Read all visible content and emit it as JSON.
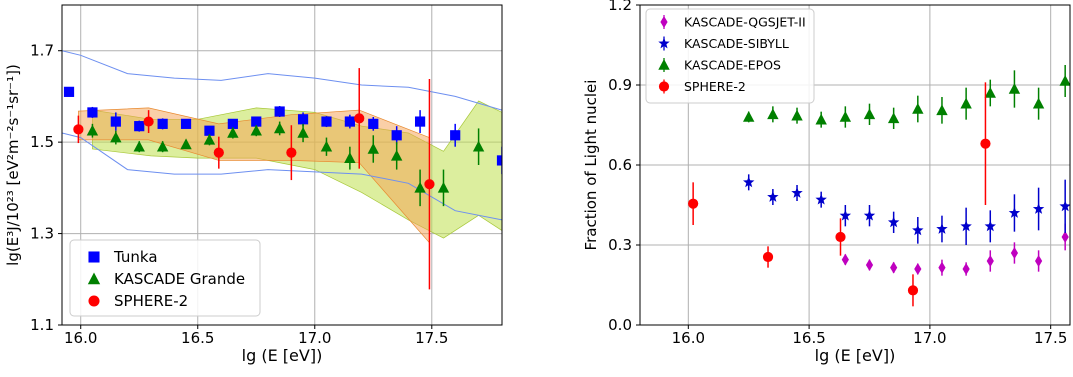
{
  "chart_data": [
    {
      "type": "scatter",
      "xlabel": "lg (E [eV])",
      "ylabel": "lg(E³J/10²³ [eV²m⁻²s⁻¹sr⁻¹])",
      "xlim": [
        15.92,
        17.8
      ],
      "ylim": [
        1.1,
        1.8
      ],
      "xticks": [
        16.0,
        16.5,
        17.0,
        17.5
      ],
      "xtick_labels": [
        "16.0",
        "16.5",
        "17.0",
        "17.5"
      ],
      "yticks": [
        1.1,
        1.3,
        1.5,
        1.7
      ],
      "ytick_labels": [
        "1.1",
        "1.3",
        "1.5",
        "1.7"
      ],
      "grid": true,
      "legend_position": "lower-left",
      "series": [
        {
          "name": "Tunka",
          "marker": "square",
          "color": "#0000ff",
          "points": [
            {
              "x": 15.95,
              "y": 1.61,
              "err": 0.0
            },
            {
              "x": 16.05,
              "y": 1.565,
              "err": 0.012
            },
            {
              "x": 16.15,
              "y": 1.545,
              "err": 0.02
            },
            {
              "x": 16.25,
              "y": 1.535,
              "err": 0.012
            },
            {
              "x": 16.35,
              "y": 1.54,
              "err": 0.012
            },
            {
              "x": 16.45,
              "y": 1.54,
              "err": 0.01
            },
            {
              "x": 16.55,
              "y": 1.525,
              "err": 0.01
            },
            {
              "x": 16.65,
              "y": 1.54,
              "err": 0.01
            },
            {
              "x": 16.75,
              "y": 1.545,
              "err": 0.01
            },
            {
              "x": 16.85,
              "y": 1.567,
              "err": 0.012
            },
            {
              "x": 16.95,
              "y": 1.55,
              "err": 0.015
            },
            {
              "x": 17.05,
              "y": 1.545,
              "err": 0.012
            },
            {
              "x": 17.15,
              "y": 1.545,
              "err": 0.015
            },
            {
              "x": 17.25,
              "y": 1.54,
              "err": 0.015
            },
            {
              "x": 17.35,
              "y": 1.515,
              "err": 0.02
            },
            {
              "x": 17.45,
              "y": 1.545,
              "err": 0.025
            },
            {
              "x": 17.6,
              "y": 1.515,
              "err": 0.025
            },
            {
              "x": 17.8,
              "y": 1.46,
              "err": 0.03
            }
          ]
        },
        {
          "name": "KASCADE Grande",
          "marker": "triangle",
          "color": "#008000",
          "points": [
            {
              "x": 16.05,
              "y": 1.525,
              "err": 0.015
            },
            {
              "x": 16.15,
              "y": 1.51,
              "err": 0.015
            },
            {
              "x": 16.25,
              "y": 1.49,
              "err": 0.012
            },
            {
              "x": 16.35,
              "y": 1.49,
              "err": 0.012
            },
            {
              "x": 16.45,
              "y": 1.495,
              "err": 0.01
            },
            {
              "x": 16.55,
              "y": 1.505,
              "err": 0.012
            },
            {
              "x": 16.65,
              "y": 1.52,
              "err": 0.012
            },
            {
              "x": 16.75,
              "y": 1.525,
              "err": 0.012
            },
            {
              "x": 16.85,
              "y": 1.53,
              "err": 0.015
            },
            {
              "x": 16.95,
              "y": 1.52,
              "err": 0.02
            },
            {
              "x": 17.05,
              "y": 1.49,
              "err": 0.02
            },
            {
              "x": 17.15,
              "y": 1.465,
              "err": 0.025
            },
            {
              "x": 17.25,
              "y": 1.485,
              "err": 0.03
            },
            {
              "x": 17.35,
              "y": 1.47,
              "err": 0.03
            },
            {
              "x": 17.45,
              "y": 1.4,
              "err": 0.04
            },
            {
              "x": 17.55,
              "y": 1.4,
              "err": 0.04
            },
            {
              "x": 17.7,
              "y": 1.49,
              "err": 0.04
            }
          ]
        },
        {
          "name": "SPHERE-2",
          "marker": "circle",
          "color": "#ff0000",
          "points": [
            {
              "x": 15.99,
              "y": 1.528,
              "err": 0.03
            },
            {
              "x": 16.29,
              "y": 1.545,
              "err": 0.025
            },
            {
              "x": 16.59,
              "y": 1.477,
              "err": 0.035
            },
            {
              "x": 16.9,
              "y": 1.477,
              "err": 0.06
            },
            {
              "x": 17.19,
              "y": 1.552,
              "err": 0.11
            },
            {
              "x": 17.49,
              "y": 1.408,
              "err": 0.23
            }
          ]
        }
      ]
    },
    {
      "type": "scatter",
      "xlabel": "lg (E [eV])",
      "ylabel": "Fraction of Light nuclei",
      "xlim": [
        15.8,
        17.58
      ],
      "ylim": [
        0.0,
        1.2
      ],
      "xticks": [
        16.0,
        16.5,
        17.0,
        17.5
      ],
      "xtick_labels": [
        "16.0",
        "16.5",
        "17.0",
        "17.5"
      ],
      "yticks": [
        0.0,
        0.3,
        0.6,
        0.9,
        1.2
      ],
      "ytick_labels": [
        "0.0",
        "0.3",
        "0.6",
        "0.9",
        "1.2"
      ],
      "grid": true,
      "legend_position": "top-left",
      "series": [
        {
          "name": "KASCADE-QGSJET-II",
          "marker": "diamond",
          "color": "#bf00bf",
          "points": [
            {
              "x": 16.65,
              "y": 0.245,
              "err": 0.02
            },
            {
              "x": 16.75,
              "y": 0.225,
              "err": 0.02
            },
            {
              "x": 16.85,
              "y": 0.215,
              "err": 0.02
            },
            {
              "x": 16.95,
              "y": 0.21,
              "err": 0.02
            },
            {
              "x": 17.05,
              "y": 0.215,
              "err": 0.03
            },
            {
              "x": 17.15,
              "y": 0.21,
              "err": 0.025
            },
            {
              "x": 17.25,
              "y": 0.24,
              "err": 0.04
            },
            {
              "x": 17.35,
              "y": 0.27,
              "err": 0.04
            },
            {
              "x": 17.45,
              "y": 0.24,
              "err": 0.04
            },
            {
              "x": 17.56,
              "y": 0.33,
              "err": 0.05
            }
          ]
        },
        {
          "name": "KASCADE-SIBYLL",
          "marker": "star",
          "color": "#0000cc",
          "points": [
            {
              "x": 16.25,
              "y": 0.535,
              "err": 0.03
            },
            {
              "x": 16.35,
              "y": 0.48,
              "err": 0.03
            },
            {
              "x": 16.45,
              "y": 0.495,
              "err": 0.03
            },
            {
              "x": 16.55,
              "y": 0.47,
              "err": 0.03
            },
            {
              "x": 16.65,
              "y": 0.41,
              "err": 0.04
            },
            {
              "x": 16.75,
              "y": 0.41,
              "err": 0.04
            },
            {
              "x": 16.85,
              "y": 0.385,
              "err": 0.04
            },
            {
              "x": 16.95,
              "y": 0.355,
              "err": 0.05
            },
            {
              "x": 17.05,
              "y": 0.36,
              "err": 0.05
            },
            {
              "x": 17.15,
              "y": 0.37,
              "err": 0.07
            },
            {
              "x": 17.25,
              "y": 0.37,
              "err": 0.06
            },
            {
              "x": 17.35,
              "y": 0.42,
              "err": 0.07
            },
            {
              "x": 17.45,
              "y": 0.435,
              "err": 0.08
            },
            {
              "x": 17.56,
              "y": 0.445,
              "err": 0.1
            }
          ]
        },
        {
          "name": "KASCADE-EPOS",
          "marker": "triangle",
          "color": "#008000",
          "points": [
            {
              "x": 16.25,
              "y": 0.78,
              "err": 0.02
            },
            {
              "x": 16.35,
              "y": 0.79,
              "err": 0.03
            },
            {
              "x": 16.45,
              "y": 0.785,
              "err": 0.03
            },
            {
              "x": 16.55,
              "y": 0.77,
              "err": 0.03
            },
            {
              "x": 16.65,
              "y": 0.78,
              "err": 0.04
            },
            {
              "x": 16.75,
              "y": 0.79,
              "err": 0.04
            },
            {
              "x": 16.85,
              "y": 0.775,
              "err": 0.04
            },
            {
              "x": 16.95,
              "y": 0.81,
              "err": 0.05
            },
            {
              "x": 17.05,
              "y": 0.805,
              "err": 0.05
            },
            {
              "x": 17.15,
              "y": 0.83,
              "err": 0.06
            },
            {
              "x": 17.25,
              "y": 0.87,
              "err": 0.05
            },
            {
              "x": 17.35,
              "y": 0.885,
              "err": 0.07
            },
            {
              "x": 17.45,
              "y": 0.83,
              "err": 0.06
            },
            {
              "x": 17.56,
              "y": 0.915,
              "err": 0.06
            }
          ]
        },
        {
          "name": "SPHERE-2",
          "marker": "circle",
          "color": "#ff0000",
          "points": [
            {
              "x": 16.02,
              "y": 0.455,
              "err": 0.08
            },
            {
              "x": 16.33,
              "y": 0.255,
              "err": 0.04
            },
            {
              "x": 16.63,
              "y": 0.33,
              "err": 0.07
            },
            {
              "x": 16.93,
              "y": 0.13,
              "err": 0.06
            },
            {
              "x": 17.23,
              "y": 0.68,
              "err": 0.23
            }
          ]
        }
      ]
    }
  ]
}
